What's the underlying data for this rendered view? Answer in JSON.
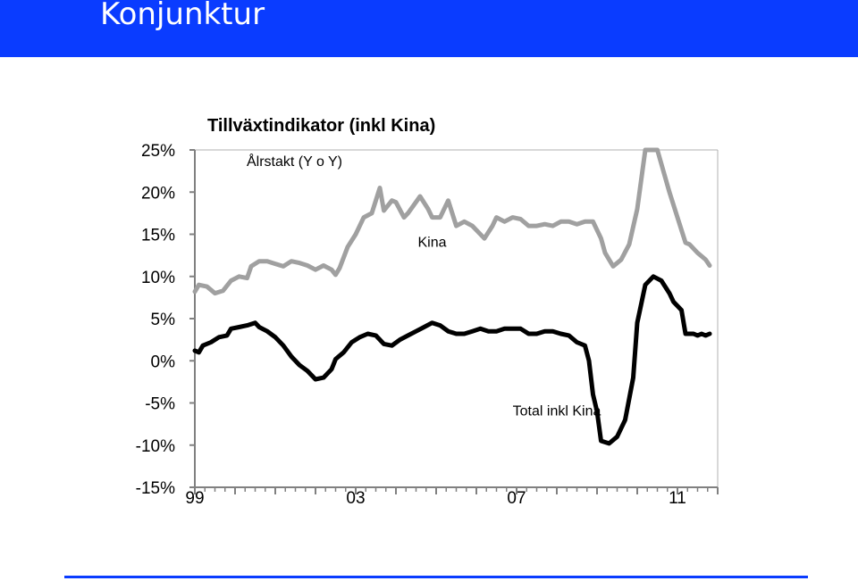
{
  "header": {
    "title": "Konjunktur"
  },
  "colors": {
    "header_bg": "#0a3cff",
    "series_total": "#000000",
    "series_kina": "#a0a0a0",
    "axis": "#808080"
  },
  "chart_data": {
    "type": "line",
    "title": "Tillväxtindikator (inkl Kina)",
    "subtitle": "Ålrstakt (Y o Y)",
    "xlabel": "",
    "ylabel": "",
    "ylim": [
      -15,
      25
    ],
    "xlim": [
      1999,
      2012
    ],
    "y_ticks": [
      "25%",
      "20%",
      "15%",
      "10%",
      "5%",
      "0%",
      "-5%",
      "-10%",
      "-15%"
    ],
    "x_ticks": [
      {
        "label": "99",
        "x": 1999
      },
      {
        "label": "03",
        "x": 2003
      },
      {
        "label": "07",
        "x": 2007
      },
      {
        "label": "11",
        "x": 2011
      }
    ],
    "grid": false,
    "series": [
      {
        "name": "Kina",
        "color": "#a0a0a0",
        "label_at": [
          2004.9,
          13.5
        ],
        "points": [
          [
            1999.0,
            8.2
          ],
          [
            1999.1,
            9.0
          ],
          [
            1999.3,
            8.8
          ],
          [
            1999.5,
            8.0
          ],
          [
            1999.7,
            8.3
          ],
          [
            1999.9,
            9.5
          ],
          [
            2000.1,
            10.0
          ],
          [
            2000.3,
            9.8
          ],
          [
            2000.4,
            11.2
          ],
          [
            2000.6,
            11.8
          ],
          [
            2000.8,
            11.8
          ],
          [
            2001.0,
            11.5
          ],
          [
            2001.2,
            11.2
          ],
          [
            2001.4,
            11.8
          ],
          [
            2001.6,
            11.6
          ],
          [
            2001.8,
            11.3
          ],
          [
            2002.0,
            10.8
          ],
          [
            2002.2,
            11.3
          ],
          [
            2002.4,
            10.8
          ],
          [
            2002.5,
            10.2
          ],
          [
            2002.6,
            11.0
          ],
          [
            2002.8,
            13.5
          ],
          [
            2003.0,
            15.0
          ],
          [
            2003.2,
            17.0
          ],
          [
            2003.4,
            17.5
          ],
          [
            2003.6,
            20.5
          ],
          [
            2003.7,
            17.8
          ],
          [
            2003.9,
            19.0
          ],
          [
            2004.0,
            18.8
          ],
          [
            2004.2,
            17.0
          ],
          [
            2004.3,
            17.5
          ],
          [
            2004.6,
            19.5
          ],
          [
            2004.8,
            18.0
          ],
          [
            2004.9,
            17.0
          ],
          [
            2005.1,
            17.0
          ],
          [
            2005.3,
            19.0
          ],
          [
            2005.5,
            16.0
          ],
          [
            2005.7,
            16.5
          ],
          [
            2005.9,
            16.0
          ],
          [
            2006.0,
            15.5
          ],
          [
            2006.2,
            14.5
          ],
          [
            2006.4,
            16.0
          ],
          [
            2006.5,
            17.0
          ],
          [
            2006.7,
            16.5
          ],
          [
            2006.9,
            17.0
          ],
          [
            2007.1,
            16.8
          ],
          [
            2007.3,
            16.0
          ],
          [
            2007.5,
            16.0
          ],
          [
            2007.7,
            16.2
          ],
          [
            2007.9,
            16.0
          ],
          [
            2008.1,
            16.5
          ],
          [
            2008.3,
            16.5
          ],
          [
            2008.5,
            16.2
          ],
          [
            2008.7,
            16.5
          ],
          [
            2008.8,
            16.5
          ],
          [
            2008.9,
            16.5
          ],
          [
            2009.1,
            14.5
          ],
          [
            2009.2,
            12.8
          ],
          [
            2009.4,
            11.2
          ],
          [
            2009.6,
            12.0
          ],
          [
            2009.8,
            13.8
          ],
          [
            2010.0,
            18.0
          ],
          [
            2010.2,
            25.0
          ],
          [
            2010.5,
            25.0
          ],
          [
            2010.8,
            20.0
          ],
          [
            2011.0,
            17.0
          ],
          [
            2011.2,
            14.0
          ],
          [
            2011.3,
            13.8
          ],
          [
            2011.5,
            12.8
          ],
          [
            2011.7,
            12.0
          ],
          [
            2011.8,
            11.3
          ]
        ]
      },
      {
        "name": "Total inkl Kina",
        "color": "#000000",
        "label_at": [
          2008.0,
          -6.5
        ],
        "points": [
          [
            1999.0,
            1.2
          ],
          [
            1999.1,
            1.0
          ],
          [
            1999.2,
            1.8
          ],
          [
            1999.4,
            2.2
          ],
          [
            1999.6,
            2.8
          ],
          [
            1999.8,
            3.0
          ],
          [
            1999.9,
            3.8
          ],
          [
            2000.1,
            4.0
          ],
          [
            2000.3,
            4.2
          ],
          [
            2000.5,
            4.5
          ],
          [
            2000.6,
            4.0
          ],
          [
            2000.8,
            3.5
          ],
          [
            2001.0,
            2.8
          ],
          [
            2001.2,
            1.8
          ],
          [
            2001.4,
            0.5
          ],
          [
            2001.6,
            -0.5
          ],
          [
            2001.8,
            -1.2
          ],
          [
            2002.0,
            -2.2
          ],
          [
            2002.2,
            -2.0
          ],
          [
            2002.4,
            -1.0
          ],
          [
            2002.5,
            0.2
          ],
          [
            2002.7,
            1.0
          ],
          [
            2002.9,
            2.2
          ],
          [
            2003.1,
            2.8
          ],
          [
            2003.3,
            3.2
          ],
          [
            2003.5,
            3.0
          ],
          [
            2003.7,
            2.0
          ],
          [
            2003.9,
            1.8
          ],
          [
            2004.1,
            2.5
          ],
          [
            2004.3,
            3.0
          ],
          [
            2004.5,
            3.5
          ],
          [
            2004.7,
            4.0
          ],
          [
            2004.9,
            4.5
          ],
          [
            2005.1,
            4.2
          ],
          [
            2005.3,
            3.5
          ],
          [
            2005.5,
            3.2
          ],
          [
            2005.7,
            3.2
          ],
          [
            2005.9,
            3.5
          ],
          [
            2006.1,
            3.8
          ],
          [
            2006.3,
            3.5
          ],
          [
            2006.5,
            3.5
          ],
          [
            2006.7,
            3.8
          ],
          [
            2006.9,
            3.8
          ],
          [
            2007.1,
            3.8
          ],
          [
            2007.3,
            3.2
          ],
          [
            2007.5,
            3.2
          ],
          [
            2007.7,
            3.5
          ],
          [
            2007.9,
            3.5
          ],
          [
            2008.1,
            3.2
          ],
          [
            2008.3,
            3.0
          ],
          [
            2008.5,
            2.2
          ],
          [
            2008.7,
            1.8
          ],
          [
            2008.8,
            0.0
          ],
          [
            2008.9,
            -4.0
          ],
          [
            2009.0,
            -6.0
          ],
          [
            2009.1,
            -9.5
          ],
          [
            2009.3,
            -9.8
          ],
          [
            2009.5,
            -9.0
          ],
          [
            2009.7,
            -7.0
          ],
          [
            2009.9,
            -2.0
          ],
          [
            2010.0,
            4.5
          ],
          [
            2010.2,
            9.0
          ],
          [
            2010.4,
            10.0
          ],
          [
            2010.6,
            9.5
          ],
          [
            2010.8,
            8.0
          ],
          [
            2010.9,
            7.0
          ],
          [
            2011.1,
            6.0
          ],
          [
            2011.2,
            3.2
          ],
          [
            2011.4,
            3.2
          ],
          [
            2011.5,
            3.0
          ],
          [
            2011.6,
            3.2
          ],
          [
            2011.7,
            3.0
          ],
          [
            2011.8,
            3.2
          ]
        ]
      }
    ]
  }
}
